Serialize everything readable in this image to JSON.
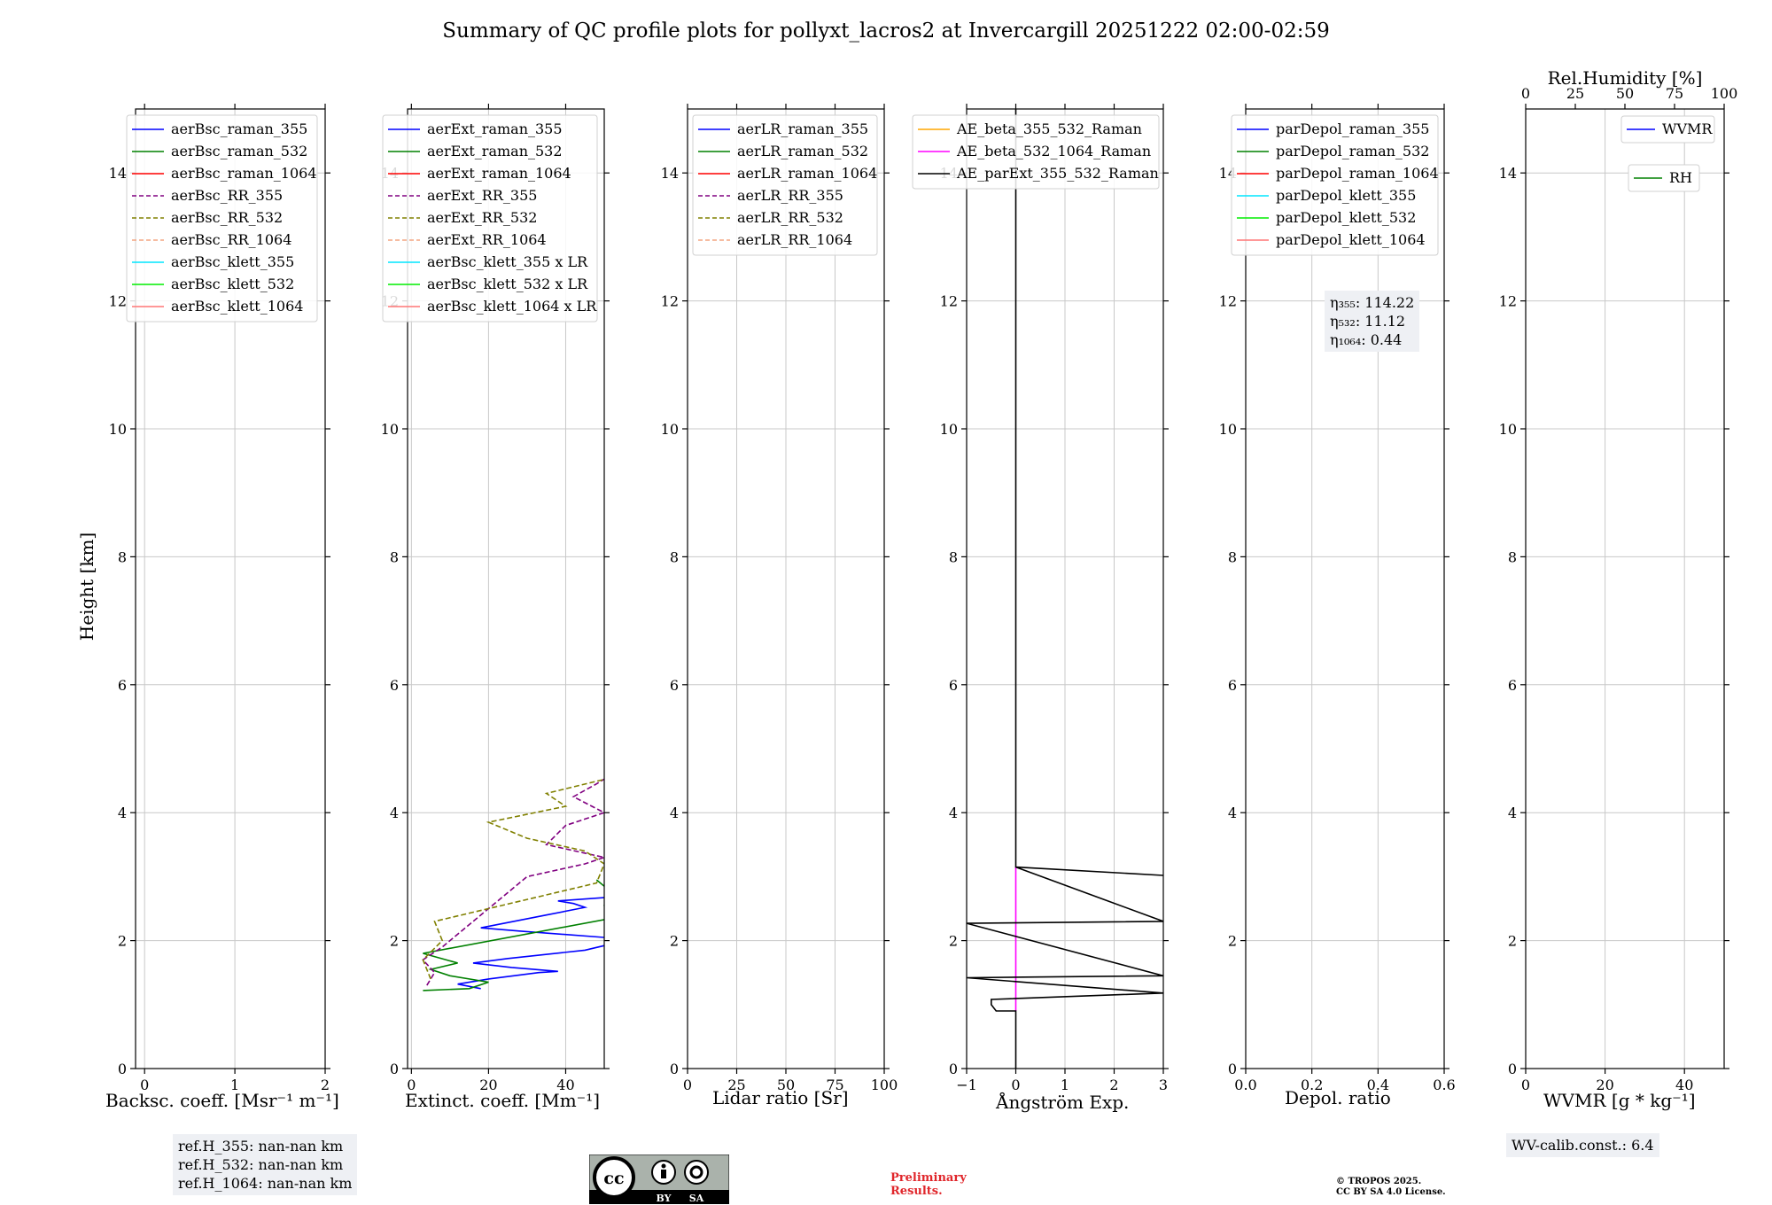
{
  "title": "Summary of QC profile plots for pollyxt_lacros2 at Invercargill 20251222 02:00-02:59",
  "ylabel": "Height [km]",
  "panels": [
    {
      "xlabel": "Backsc. coeff. [Msr⁻¹ m⁻¹]"
    },
    {
      "xlabel": "Extinct. coeff. [Mm⁻¹]"
    },
    {
      "xlabel": "Lidar ratio [Sr]"
    },
    {
      "xlabel": "Ångström Exp."
    },
    {
      "xlabel": "Depol. ratio"
    },
    {
      "xlabel": "WVMR [g * kg⁻¹]"
    }
  ],
  "ref_heights": [
    "ref.H_355: nan-nan km",
    "ref.H_532: nan-nan km",
    "ref.H_1064: nan-nan km"
  ],
  "eta": {
    "l1": "η₃₅₅: 114.22",
    "l2": "η₅₃₂: 11.12",
    "l3": "η₁₀₆₄: 0.44"
  },
  "wv_calib": "WV-calib.const.: 6.4",
  "license_badge": {
    "by": "BY",
    "sa": "SA"
  },
  "preliminary": {
    "l1": "Preliminary",
    "l2": "Results."
  },
  "copyright": {
    "l1": "© TROPOS 2025.",
    "l2": "CC BY SA 4.0 License."
  },
  "colors": {
    "blue": "#0000ff",
    "green": "#008000",
    "red": "#ff0000",
    "purple": "#800080",
    "olive": "#808000",
    "salmon": "#f4a582",
    "cyan": "#00e5ff",
    "lime": "#00ee00",
    "pink": "#ff7777",
    "orange": "#ffa500",
    "magenta": "#ff00ff",
    "black": "#000000",
    "grid": "#c8c8c8"
  },
  "chart_data": [
    {
      "type": "line",
      "title": "",
      "xlabel": "Backsc. coeff. [Msr⁻¹ m⁻¹]",
      "ylabel": "Height [km]",
      "xlim": [
        -0.1,
        2.0
      ],
      "ylim": [
        0,
        15
      ],
      "xticks": [
        0,
        1,
        2
      ],
      "yticks": [
        0,
        2,
        4,
        6,
        8,
        10,
        12,
        14
      ],
      "grid": true,
      "legend_position": "upper-right",
      "series": [
        {
          "name": "aerBsc_raman_355",
          "color": "blue",
          "style": "solid",
          "points": []
        },
        {
          "name": "aerBsc_raman_532",
          "color": "green",
          "style": "solid",
          "points": []
        },
        {
          "name": "aerBsc_raman_1064",
          "color": "red",
          "style": "solid",
          "points": []
        },
        {
          "name": "aerBsc_RR_355",
          "color": "purple",
          "style": "dashed",
          "points": []
        },
        {
          "name": "aerBsc_RR_532",
          "color": "olive",
          "style": "dashed",
          "points": []
        },
        {
          "name": "aerBsc_RR_1064",
          "color": "salmon",
          "style": "dashed",
          "points": []
        },
        {
          "name": "aerBsc_klett_355",
          "color": "cyan",
          "style": "solid",
          "points": []
        },
        {
          "name": "aerBsc_klett_532",
          "color": "lime",
          "style": "solid",
          "points": []
        },
        {
          "name": "aerBsc_klett_1064",
          "color": "pink",
          "style": "solid",
          "points": []
        }
      ]
    },
    {
      "type": "line",
      "title": "",
      "xlabel": "Extinct. coeff. [Mm⁻¹]",
      "ylabel": "",
      "xlim": [
        -1,
        50
      ],
      "ylim": [
        0,
        15
      ],
      "xticks": [
        0,
        20,
        40
      ],
      "yticks": [
        0,
        2,
        4,
        6,
        8,
        10,
        12,
        14
      ],
      "grid": true,
      "legend_position": "upper-right",
      "series": [
        {
          "name": "aerExt_raman_355",
          "color": "blue",
          "style": "solid",
          "points": [
            [
              18,
              1.25
            ],
            [
              12,
              1.32
            ],
            [
              20,
              1.4
            ],
            [
              33,
              1.5
            ],
            [
              38,
              1.52
            ],
            [
              26,
              1.58
            ],
            [
              16,
              1.65
            ],
            [
              25,
              1.72
            ],
            [
              45,
              1.85
            ],
            [
              52,
              1.95
            ],
            [
              50,
              2.05
            ],
            [
              28,
              2.15
            ],
            [
              18,
              2.2
            ],
            [
              35,
              2.4
            ],
            [
              45,
              2.52
            ],
            [
              42,
              2.58
            ],
            [
              38,
              2.62
            ],
            [
              52,
              2.68
            ]
          ]
        },
        {
          "name": "aerExt_raman_532",
          "color": "green",
          "style": "solid",
          "points": [
            [
              3,
              1.22
            ],
            [
              15,
              1.25
            ],
            [
              20,
              1.35
            ],
            [
              10,
              1.45
            ],
            [
              5,
              1.55
            ],
            [
              12,
              1.65
            ],
            [
              3,
              1.8
            ],
            [
              52,
              2.35
            ],
            [
              50,
              2.55
            ],
            [
              52,
              2.75
            ],
            [
              48,
              2.95
            ]
          ]
        },
        {
          "name": "aerExt_raman_1064",
          "color": "red",
          "style": "solid",
          "points": []
        },
        {
          "name": "aerExt_RR_355",
          "color": "purple",
          "style": "dashed",
          "points": [
            [
              4,
              1.3
            ],
            [
              6,
              1.5
            ],
            [
              3,
              1.7
            ],
            [
              8,
              1.9
            ],
            [
              30,
              3.0
            ],
            [
              45,
              3.2
            ],
            [
              50,
              3.3
            ],
            [
              35,
              3.5
            ],
            [
              40,
              3.8
            ],
            [
              50,
              4.0
            ],
            [
              42,
              4.25
            ],
            [
              48,
              4.45
            ],
            [
              52,
              4.6
            ]
          ]
        },
        {
          "name": "aerExt_RR_532",
          "color": "olive",
          "style": "dashed",
          "points": [
            [
              5,
              1.4
            ],
            [
              3,
              1.7
            ],
            [
              8,
              2.0
            ],
            [
              6,
              2.3
            ],
            [
              48,
              2.9
            ],
            [
              50,
              3.2
            ],
            [
              45,
              3.4
            ],
            [
              30,
              3.6
            ],
            [
              20,
              3.85
            ],
            [
              40,
              4.1
            ],
            [
              35,
              4.3
            ],
            [
              52,
              4.55
            ]
          ]
        },
        {
          "name": "aerExt_RR_1064",
          "color": "salmon",
          "style": "dashed",
          "points": []
        },
        {
          "name": "aerBsc_klett_355 x LR",
          "color": "cyan",
          "style": "solid",
          "points": []
        },
        {
          "name": "aerBsc_klett_532 x LR",
          "color": "lime",
          "style": "solid",
          "points": []
        },
        {
          "name": "aerBsc_klett_1064 x LR",
          "color": "pink",
          "style": "solid",
          "points": []
        }
      ]
    },
    {
      "type": "line",
      "title": "",
      "xlabel": "Lidar ratio [Sr]",
      "ylabel": "",
      "xlim": [
        0,
        100
      ],
      "ylim": [
        0,
        15
      ],
      "xticks": [
        0,
        25,
        50,
        75,
        100
      ],
      "yticks": [
        0,
        2,
        4,
        6,
        8,
        10,
        12,
        14
      ],
      "grid": true,
      "legend_position": "upper-right",
      "series": [
        {
          "name": "aerLR_raman_355",
          "color": "blue",
          "style": "solid",
          "points": []
        },
        {
          "name": "aerLR_raman_532",
          "color": "green",
          "style": "solid",
          "points": []
        },
        {
          "name": "aerLR_raman_1064",
          "color": "red",
          "style": "solid",
          "points": []
        },
        {
          "name": "aerLR_RR_355",
          "color": "purple",
          "style": "dashed",
          "points": []
        },
        {
          "name": "aerLR_RR_532",
          "color": "olive",
          "style": "dashed",
          "points": []
        },
        {
          "name": "aerLR_RR_1064",
          "color": "salmon",
          "style": "dashed",
          "points": []
        }
      ]
    },
    {
      "type": "line",
      "title": "",
      "xlabel": "Ångström Exp.",
      "ylabel": "",
      "xlim": [
        -1,
        3
      ],
      "ylim": [
        0,
        15
      ],
      "xticks": [
        -1,
        0,
        1,
        2,
        3
      ],
      "yticks": [
        0,
        2,
        4,
        6,
        8,
        10,
        12,
        14
      ],
      "grid": true,
      "legend_position": "upper-right",
      "series": [
        {
          "name": "AE_beta_355_532_Raman",
          "color": "orange",
          "style": "solid",
          "points": []
        },
        {
          "name": "AE_beta_532_1064_Raman",
          "color": "magenta",
          "style": "solid",
          "points": [
            [
              0,
              0.9
            ],
            [
              0,
              3.15
            ]
          ]
        },
        {
          "name": "AE_parExt_355_532_Raman",
          "color": "black",
          "style": "solid",
          "points": [
            [
              0,
              0
            ],
            [
              0,
              0.9
            ],
            [
              -0.4,
              0.9
            ],
            [
              -0.5,
              1.0
            ],
            [
              -0.5,
              1.08
            ],
            [
              3.0,
              1.18
            ],
            [
              -1.0,
              1.42
            ],
            [
              3.0,
              1.45
            ],
            [
              -1.0,
              2.27
            ],
            [
              3.0,
              2.3
            ],
            [
              0,
              3.15
            ],
            [
              3.0,
              3.02
            ],
            [
              0,
              3.15
            ],
            [
              0,
              15
            ]
          ]
        }
      ]
    },
    {
      "type": "line",
      "title": "",
      "xlabel": "Depol. ratio",
      "ylabel": "",
      "xlim": [
        0,
        0.6
      ],
      "ylim": [
        0,
        15
      ],
      "xticks": [
        0.0,
        0.2,
        0.4,
        0.6
      ],
      "yticks": [
        0,
        2,
        4,
        6,
        8,
        10,
        12,
        14
      ],
      "grid": true,
      "legend_position": "upper-right",
      "series": [
        {
          "name": "parDepol_raman_355",
          "color": "blue",
          "style": "solid",
          "points": []
        },
        {
          "name": "parDepol_raman_532",
          "color": "green",
          "style": "solid",
          "points": []
        },
        {
          "name": "parDepol_raman_1064",
          "color": "red",
          "style": "solid",
          "points": []
        },
        {
          "name": "parDepol_klett_355",
          "color": "cyan",
          "style": "solid",
          "points": []
        },
        {
          "name": "parDepol_klett_532",
          "color": "lime",
          "style": "solid",
          "points": []
        },
        {
          "name": "parDepol_klett_1064",
          "color": "pink",
          "style": "solid",
          "points": []
        }
      ]
    },
    {
      "type": "line",
      "title": "",
      "xlabel": "WVMR [g * kg⁻¹]",
      "ylabel": "",
      "xlim": [
        0,
        50
      ],
      "ylim": [
        0,
        15
      ],
      "xticks": [
        0,
        20,
        40
      ],
      "yticks": [
        0,
        2,
        4,
        6,
        8,
        10,
        12,
        14
      ],
      "grid": true,
      "legend_position": "upper-right",
      "top_axis": {
        "label": "Rel.Humidity [%]",
        "lim": [
          0,
          100
        ],
        "ticks": [
          0,
          25,
          50,
          75,
          100
        ]
      },
      "series": [
        {
          "name": "WVMR",
          "color": "blue",
          "style": "solid",
          "points": []
        },
        {
          "name": "RH",
          "color": "green",
          "style": "solid",
          "points": []
        }
      ]
    }
  ]
}
